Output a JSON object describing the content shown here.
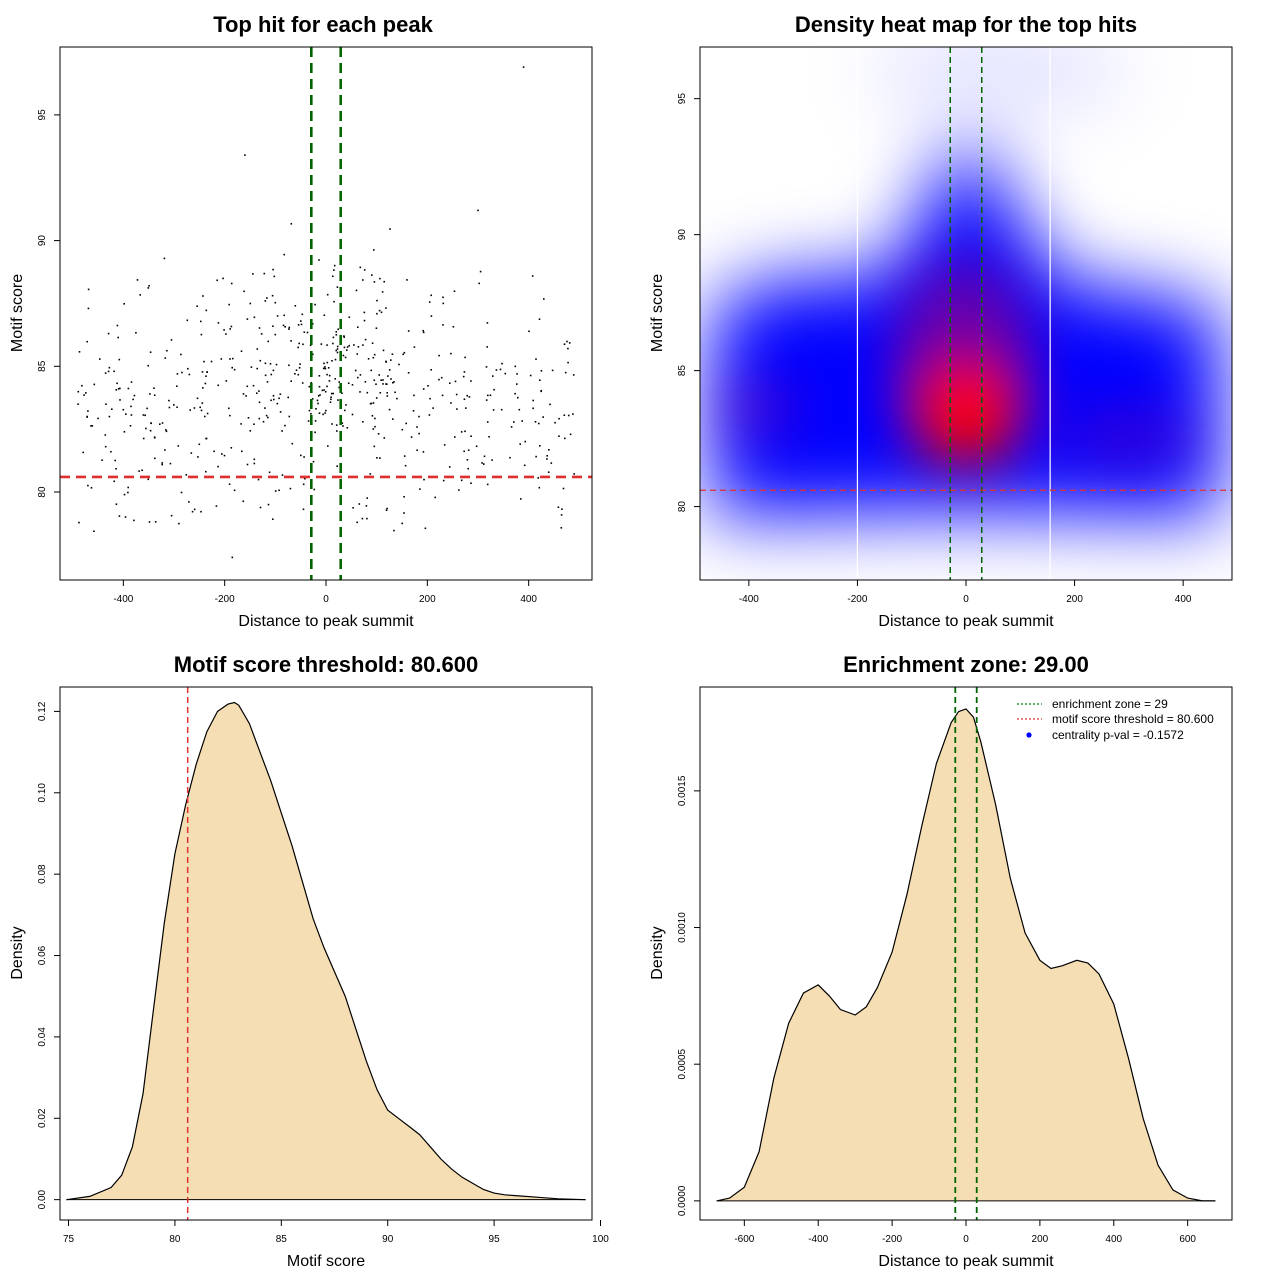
{
  "colors": {
    "vline": "#006400",
    "hline": "#e03030",
    "fill": "#f5deb3",
    "heat_low": "#0000ff",
    "heat_high": "#ff0000",
    "legend_dot": "#0000ff"
  },
  "chart_data": [
    {
      "id": "scatter",
      "type": "scatter",
      "title": "Top hit for each peak",
      "xlabel": "Distance to peak summit",
      "ylabel": "Motif score",
      "xlim": [
        -525,
        525
      ],
      "ylim": [
        76.5,
        97.7
      ],
      "xticks": [
        -400,
        -200,
        0,
        200,
        400
      ],
      "yticks": [
        80,
        85,
        90,
        95
      ],
      "vlines": [
        -29,
        29
      ],
      "hline": 80.6,
      "n_points": 620,
      "x_range": [
        -490,
        490
      ],
      "score_range": [
        77.3,
        96.9
      ],
      "outliers": [
        [
          390,
          96.9
        ],
        [
          -160,
          93.4
        ],
        [
          300,
          91.2
        ],
        [
          -185,
          77.4
        ]
      ]
    },
    {
      "id": "heatmap",
      "type": "heatmap",
      "title": "Density heat map for the top hits",
      "xlabel": "Distance to peak summit",
      "ylabel": "Motif score",
      "xlim": [
        -490,
        490
      ],
      "ylim": [
        77.3,
        96.9
      ],
      "xticks": [
        -400,
        -200,
        0,
        200,
        400
      ],
      "yticks": [
        80,
        85,
        90,
        95
      ],
      "vlines": [
        -29,
        29
      ],
      "hline": 80.6,
      "white_lines": [
        -200,
        155
      ],
      "density_peak": [
        0,
        83.5
      ]
    },
    {
      "id": "score-density",
      "type": "area",
      "title": "Motif score threshold: 80.600",
      "xlabel": "Motif score",
      "ylabel": "Density",
      "xlim": [
        74.6,
        99.6
      ],
      "ylim": [
        -0.005,
        0.126
      ],
      "xticks": [
        75,
        80,
        85,
        90,
        95,
        100
      ],
      "yticks": [
        0.0,
        0.02,
        0.04,
        0.06,
        0.08,
        0.1,
        0.12
      ],
      "ytick_labels": [
        "0.00",
        "0.02",
        "0.04",
        "0.06",
        "0.08",
        "0.10",
        "0.12"
      ],
      "vline": 80.6,
      "x": [
        74.9,
        76,
        77,
        77.5,
        78,
        78.5,
        79,
        79.5,
        80,
        80.5,
        81,
        81.5,
        82,
        82.5,
        82.8,
        83,
        83.5,
        84,
        84.5,
        85,
        85.5,
        86,
        86.5,
        87,
        87.5,
        88,
        88.5,
        89,
        89.5,
        90,
        90.5,
        91,
        91.5,
        92,
        92.5,
        93,
        93.5,
        94,
        94.5,
        95,
        95.5,
        96,
        97,
        98,
        99.3
      ],
      "y": [
        0.0,
        0.0008,
        0.003,
        0.006,
        0.013,
        0.026,
        0.047,
        0.068,
        0.085,
        0.097,
        0.107,
        0.115,
        0.12,
        0.1218,
        0.1222,
        0.1215,
        0.117,
        0.11,
        0.103,
        0.095,
        0.087,
        0.078,
        0.069,
        0.062,
        0.056,
        0.05,
        0.042,
        0.034,
        0.027,
        0.022,
        0.02,
        0.018,
        0.016,
        0.013,
        0.01,
        0.0075,
        0.0055,
        0.004,
        0.0025,
        0.0016,
        0.0012,
        0.001,
        0.0006,
        0.0002,
        0.0
      ]
    },
    {
      "id": "distance-density",
      "type": "area",
      "title": "Enrichment zone: 29.00",
      "xlabel": "Distance to peak summit",
      "ylabel": "Density",
      "xlim": [
        -720,
        720
      ],
      "ylim": [
        -7e-05,
        0.00188
      ],
      "xticks": [
        -600,
        -400,
        -200,
        0,
        200,
        400,
        600
      ],
      "yticks": [
        0.0,
        0.0005,
        0.001,
        0.0015
      ],
      "ytick_labels": [
        "0.0000",
        "0.0005",
        "0.0010",
        "0.0015"
      ],
      "vlines": [
        -29,
        29
      ],
      "x": [
        -675,
        -640,
        -600,
        -560,
        -520,
        -480,
        -440,
        -400,
        -370,
        -340,
        -300,
        -270,
        -240,
        -200,
        -160,
        -120,
        -80,
        -40,
        -20,
        0,
        20,
        40,
        80,
        120,
        160,
        200,
        230,
        260,
        300,
        330,
        360,
        400,
        440,
        480,
        520,
        560,
        600,
        640,
        675
      ],
      "y": [
        0.0,
        1e-05,
        5e-05,
        0.00018,
        0.00045,
        0.00065,
        0.00076,
        0.00079,
        0.00075,
        0.0007,
        0.00068,
        0.00071,
        0.00078,
        0.00091,
        0.00112,
        0.00137,
        0.0016,
        0.00175,
        0.00179,
        0.0018,
        0.00177,
        0.00168,
        0.00145,
        0.00118,
        0.00098,
        0.00088,
        0.00085,
        0.00086,
        0.00088,
        0.00087,
        0.00083,
        0.00072,
        0.00052,
        0.0003,
        0.00013,
        4e-05,
        1e-05,
        0.0,
        0.0
      ],
      "legend": [
        {
          "label": "enrichment zone = 29",
          "style": "dotted-line",
          "color": "#008000"
        },
        {
          "label": "motif score threshold = 80.600",
          "style": "dotted-line",
          "color": "#e03030"
        },
        {
          "label": "centrality p-val = -0.1572",
          "style": "dot",
          "color": "#0000ff"
        }
      ]
    }
  ]
}
